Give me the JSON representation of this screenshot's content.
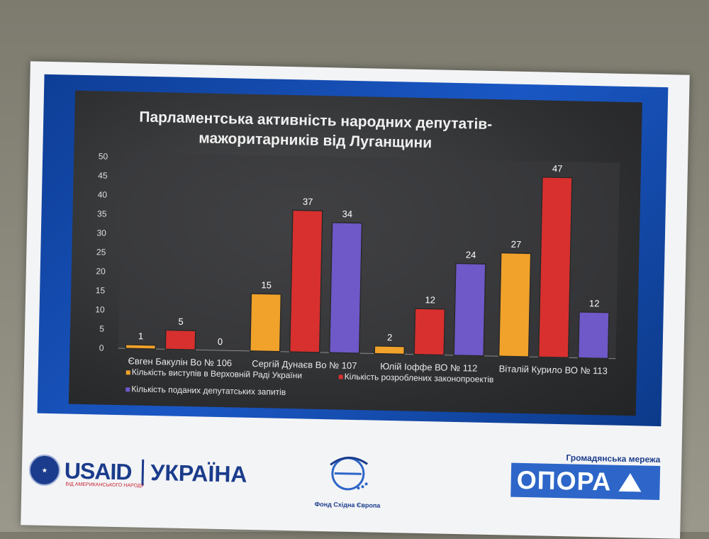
{
  "chart_data": {
    "type": "bar",
    "title_lines": [
      "Парламентська активність народних депутатів-",
      "мажоритарників від Луганщини"
    ],
    "categories": [
      "Євген Бакулін Во № 106",
      "Сергій Дунаєв Во № 107",
      "Юлій Іоффе ВО № 112",
      "Віталій Курило ВО № 113"
    ],
    "series": [
      {
        "name": "Кількість виступів в Верховній Раді України",
        "values": [
          1,
          15,
          2,
          27
        ],
        "color": "#f0a22a"
      },
      {
        "name": "Кількість розроблених законопроектів",
        "values": [
          5,
          37,
          12,
          47
        ],
        "color": "#d8302e"
      },
      {
        "name": "Кількість поданих депутатських запитів",
        "values": [
          0,
          34,
          24,
          12
        ],
        "color": "#6f58c8"
      }
    ],
    "yticks": [
      0,
      5,
      10,
      15,
      20,
      25,
      30,
      35,
      40,
      45,
      50
    ],
    "ylim": [
      0,
      50
    ],
    "legend": "bottom"
  },
  "logos": {
    "usaid_main": "USAID",
    "usaid_sub": "ВІД АМЕРИКАНСЬКОГО НАРОДУ",
    "usaid_country": "УКРАЇНА",
    "fund_name": "Фонд Східна Європа",
    "opora_top": "Громадянська мережа",
    "opora_word": "ОПОРА"
  }
}
